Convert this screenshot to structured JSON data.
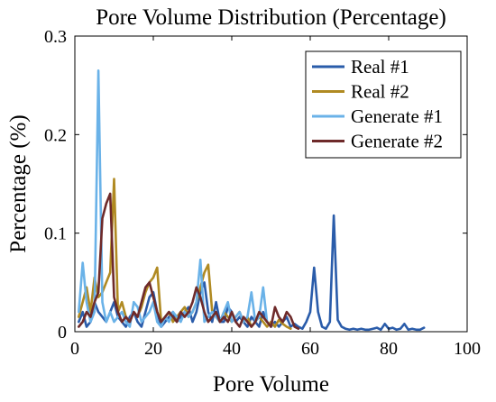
{
  "chart_data": {
    "type": "line",
    "title": "Pore Volume Distribution (Percentage)",
    "xlabel": "Pore Volume",
    "ylabel": "Percentage (%)",
    "xlim": [
      0,
      100
    ],
    "ylim": [
      0,
      0.3
    ],
    "xticks": [
      0,
      20,
      40,
      60,
      80,
      100
    ],
    "yticks": [
      0,
      0.1,
      0.2,
      0.3
    ],
    "ytick_labels": [
      "0",
      "0.1",
      "0.2",
      "0.3"
    ],
    "grid": false,
    "legend_position": "top-right",
    "series": [
      {
        "name": "Real #1",
        "color": "#2a5caa",
        "x": [
          1,
          2,
          3,
          4,
          5,
          6,
          7,
          8,
          9,
          10,
          11,
          12,
          13,
          14,
          15,
          16,
          17,
          18,
          19,
          20,
          21,
          22,
          23,
          24,
          25,
          26,
          27,
          28,
          29,
          30,
          31,
          32,
          33,
          34,
          35,
          36,
          37,
          38,
          39,
          40,
          41,
          42,
          43,
          44,
          45,
          46,
          47,
          48,
          49,
          50,
          51,
          52,
          53,
          54,
          55,
          56,
          57,
          58,
          59,
          60,
          61,
          62,
          63,
          64,
          65,
          66,
          67,
          68,
          69,
          70,
          71,
          72,
          73,
          74,
          75,
          76,
          77,
          78,
          79,
          80,
          81,
          82,
          83,
          84,
          85,
          86,
          87,
          88,
          89
        ],
        "y": [
          0.01,
          0.02,
          0.005,
          0.01,
          0.03,
          0.02,
          0.015,
          0.01,
          0.02,
          0.03,
          0.015,
          0.01,
          0.005,
          0.015,
          0.02,
          0.01,
          0.005,
          0.02,
          0.035,
          0.04,
          0.02,
          0.005,
          0.01,
          0.015,
          0.02,
          0.01,
          0.015,
          0.02,
          0.025,
          0.01,
          0.02,
          0.04,
          0.05,
          0.02,
          0.01,
          0.03,
          0.01,
          0.01,
          0.025,
          0.02,
          0.01,
          0.015,
          0.01,
          0.005,
          0.015,
          0.01,
          0.005,
          0.02,
          0.01,
          0.005,
          0.01,
          0.005,
          0.01,
          0.015,
          0.005,
          0.008,
          0.005,
          0.003,
          0.01,
          0.02,
          0.065,
          0.02,
          0.005,
          0.003,
          0.01,
          0.118,
          0.012,
          0.005,
          0.003,
          0.002,
          0.003,
          0.002,
          0.003,
          0.002,
          0.002,
          0.003,
          0.004,
          0.002,
          0.008,
          0.003,
          0.004,
          0.002,
          0.003,
          0.008,
          0.002,
          0.003,
          0.002,
          0.002,
          0.004
        ]
      },
      {
        "name": "Real #2",
        "color": "#b08a22",
        "x": [
          1,
          2,
          3,
          4,
          5,
          6,
          7,
          8,
          9,
          10,
          11,
          12,
          13,
          14,
          15,
          16,
          17,
          18,
          19,
          20,
          21,
          22,
          23,
          24,
          25,
          26,
          27,
          28,
          29,
          30,
          31,
          32,
          33,
          34,
          35,
          36,
          37,
          38,
          39,
          40,
          41,
          42,
          43,
          44,
          45,
          46,
          47,
          48,
          49,
          50,
          51,
          52,
          53,
          54,
          55
        ],
        "y": [
          0.015,
          0.03,
          0.045,
          0.02,
          0.055,
          0.035,
          0.04,
          0.05,
          0.06,
          0.155,
          0.02,
          0.03,
          0.015,
          0.01,
          0.02,
          0.015,
          0.025,
          0.04,
          0.05,
          0.055,
          0.065,
          0.01,
          0.015,
          0.02,
          0.01,
          0.015,
          0.02,
          0.025,
          0.015,
          0.02,
          0.03,
          0.045,
          0.06,
          0.068,
          0.02,
          0.015,
          0.01,
          0.02,
          0.015,
          0.01,
          0.015,
          0.02,
          0.01,
          0.015,
          0.005,
          0.01,
          0.015,
          0.01,
          0.005,
          0.01,
          0.005,
          0.012,
          0.008,
          0.005,
          0.003
        ]
      },
      {
        "name": "Generate #1",
        "color": "#6ab2e8",
        "x": [
          1,
          2,
          3,
          4,
          5,
          6,
          7,
          8,
          9,
          10,
          11,
          12,
          13,
          14,
          15,
          16,
          17,
          18,
          19,
          20,
          21,
          22,
          23,
          24,
          25,
          26,
          27,
          28,
          29,
          30,
          31,
          32,
          33,
          34,
          35,
          36,
          37,
          38,
          39,
          40,
          41,
          42,
          43,
          44,
          45,
          46,
          47,
          48,
          49,
          50
        ],
        "y": [
          0.02,
          0.07,
          0.03,
          0.01,
          0.02,
          0.265,
          0.03,
          0.01,
          0.02,
          0.01,
          0.015,
          0.02,
          0.01,
          0.005,
          0.03,
          0.025,
          0.01,
          0.015,
          0.02,
          0.03,
          0.01,
          0.005,
          0.015,
          0.01,
          0.02,
          0.015,
          0.01,
          0.02,
          0.015,
          0.02,
          0.03,
          0.073,
          0.01,
          0.015,
          0.02,
          0.015,
          0.01,
          0.02,
          0.03,
          0.01,
          0.015,
          0.02,
          0.01,
          0.015,
          0.04,
          0.01,
          0.015,
          0.045,
          0.01,
          0.005
        ]
      },
      {
        "name": "Generate #2",
        "color": "#6e2a2a",
        "x": [
          1,
          2,
          3,
          4,
          5,
          6,
          7,
          8,
          9,
          10,
          11,
          12,
          13,
          14,
          15,
          16,
          17,
          18,
          19,
          20,
          21,
          22,
          23,
          24,
          25,
          26,
          27,
          28,
          29,
          30,
          31,
          32,
          33,
          34,
          35,
          36,
          37,
          38,
          39,
          40,
          41,
          42,
          43,
          44,
          45,
          46,
          47,
          48,
          49,
          50,
          51,
          52,
          53,
          54,
          55,
          56,
          57
        ],
        "y": [
          0.005,
          0.01,
          0.02,
          0.015,
          0.03,
          0.04,
          0.115,
          0.13,
          0.14,
          0.035,
          0.02,
          0.01,
          0.015,
          0.01,
          0.02,
          0.015,
          0.03,
          0.045,
          0.05,
          0.035,
          0.02,
          0.01,
          0.015,
          0.02,
          0.015,
          0.01,
          0.02,
          0.015,
          0.02,
          0.03,
          0.045,
          0.035,
          0.02,
          0.01,
          0.015,
          0.02,
          0.01,
          0.015,
          0.01,
          0.02,
          0.01,
          0.005,
          0.015,
          0.01,
          0.005,
          0.01,
          0.02,
          0.015,
          0.01,
          0.005,
          0.025,
          0.015,
          0.01,
          0.02,
          0.015,
          0.005,
          0.003
        ]
      }
    ]
  }
}
